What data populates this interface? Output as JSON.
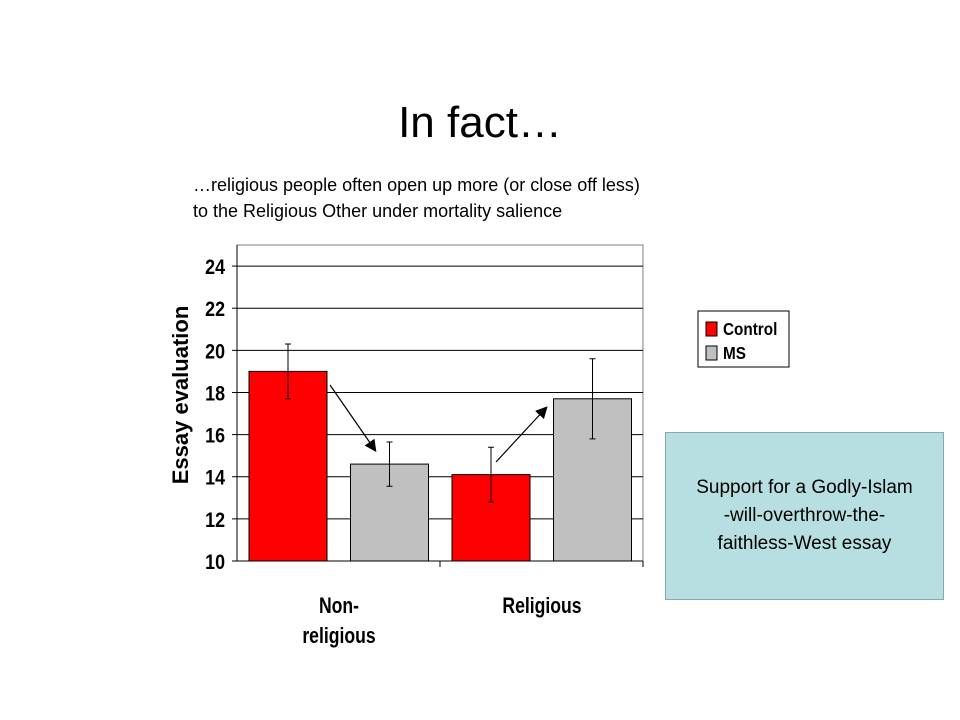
{
  "title": "In fact…",
  "subtitle": [
    "…religious people often open up more (or close off less)",
    "to the Religious Other under mortality salience"
  ],
  "note": [
    "Support for a Godly-Islam",
    "-will-overthrow-the-",
    "faithless-West essay"
  ],
  "chart_data": {
    "type": "bar",
    "y_label": "Essay evaluation",
    "categories": [
      "Non-religious",
      "Religious"
    ],
    "series": [
      {
        "name": "Control",
        "color": "#ff0000",
        "values": [
          19,
          14.1
        ],
        "errors": [
          1.3,
          1.3
        ]
      },
      {
        "name": "MS",
        "color": "#c0c0c0",
        "values": [
          14.6,
          17.7
        ],
        "errors": [
          1.05,
          1.9
        ]
      }
    ],
    "ylim": [
      10,
      25
    ],
    "yticks": [
      10,
      12,
      14,
      16,
      18,
      20,
      22,
      24
    ],
    "grid": true
  }
}
